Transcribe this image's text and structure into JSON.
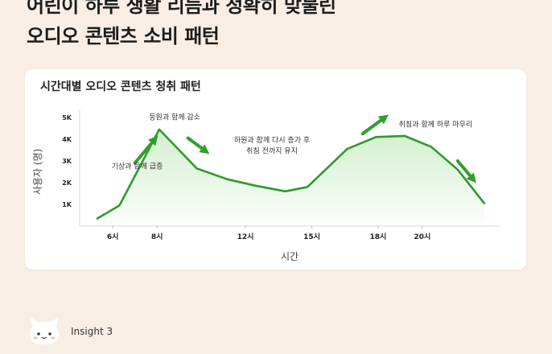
{
  "headline": {
    "line1": "어린이 하루 생활 리듬과 정확히 맞물린",
    "line2": "오디오 콘텐츠 소비 패턴"
  },
  "footer": {
    "label": "Insight 3",
    "mascot_icon": "cat-face-icon"
  },
  "colors": {
    "line": "#2e9a2b",
    "arrow": "#2f9f2c",
    "fill": "#c9ecc4",
    "background": "#f8eee6"
  },
  "chart_data": {
    "type": "area",
    "title": "시간대별 오디오 콘텐츠 청취 패턴",
    "xlabel": "시간",
    "ylabel": "사용자 (명)",
    "xlim": [
      4.5,
      23.5
    ],
    "ylim": [
      0,
      5000
    ],
    "x_ticks": [
      6,
      8,
      12,
      15,
      18,
      20
    ],
    "x_tick_labels": [
      "6시",
      "8시",
      "12시",
      "15시",
      "18시",
      "20시"
    ],
    "y_ticks": [
      1000,
      2000,
      3000,
      4000,
      5000
    ],
    "y_tick_labels": [
      "1K",
      "2K",
      "3K",
      "4K",
      "5K"
    ],
    "grid": false,
    "series": [
      {
        "x": [
          5.3,
          6.3,
          8.1,
          9.8,
          11.2,
          12.5,
          13.8,
          14.8,
          16.6,
          17.9,
          19.2,
          20.4,
          21.6,
          22.8
        ],
        "values": [
          350,
          950,
          4450,
          2650,
          2150,
          1850,
          1600,
          1800,
          3550,
          4100,
          4150,
          3650,
          2600,
          1050
        ]
      }
    ],
    "annotations": [
      {
        "text": "기상과 함께 급증",
        "x": 7.1,
        "y": 2650
      },
      {
        "text": "등원과 함께 감소",
        "x": 8.8,
        "y": 4900
      },
      {
        "text": "하원과 함께 다시 증가 후",
        "x": 13.2,
        "y": 3860
      },
      {
        "text": "취침 전까지 유지",
        "x": 13.2,
        "y": 3360
      },
      {
        "text": "취침과 함께 하루 마무리",
        "x": 20.6,
        "y": 4570
      }
    ],
    "trend_arrows": [
      {
        "direction": "up",
        "x0": 7.0,
        "y0": 2900,
        "x1": 7.9,
        "y1": 4000
      },
      {
        "direction": "down",
        "x0": 9.4,
        "y0": 4050,
        "x1": 10.2,
        "y1": 3450
      },
      {
        "direction": "up",
        "x0": 17.3,
        "y0": 4250,
        "x1": 18.3,
        "y1": 5000
      },
      {
        "direction": "down",
        "x0": 21.6,
        "y0": 3000,
        "x1": 22.3,
        "y1": 2150
      }
    ]
  }
}
